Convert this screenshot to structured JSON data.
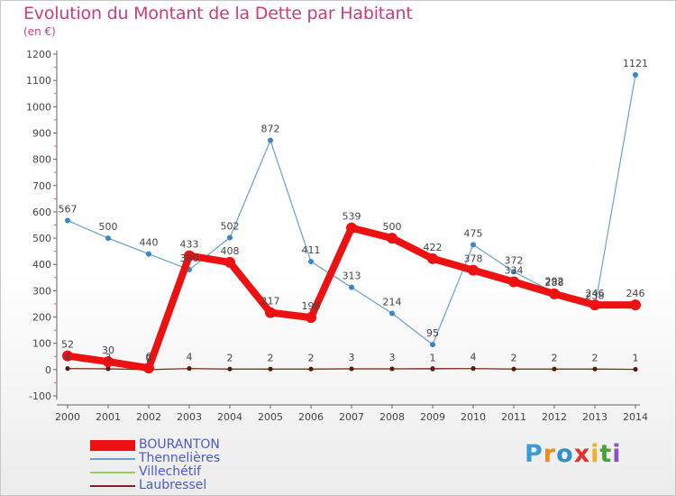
{
  "title": "Evolution du Montant de la Dette par Habitant",
  "subtitle": "(en €)",
  "logo": {
    "text": "Proxiti",
    "letters": [
      {
        "ch": "P",
        "color": "#3b9bd8"
      },
      {
        "ch": "r",
        "color": "#f08a1c"
      },
      {
        "ch": "o",
        "color": "#2f8fd0"
      },
      {
        "ch": "x",
        "color": "#e6302e"
      },
      {
        "ch": "i",
        "color": "#f0b31c"
      },
      {
        "ch": "t",
        "color": "#4aa33a"
      },
      {
        "ch": "i",
        "color": "#8a52c2"
      }
    ]
  },
  "chart_data": {
    "type": "line",
    "x": [
      2000,
      2001,
      2002,
      2003,
      2004,
      2005,
      2006,
      2007,
      2008,
      2009,
      2010,
      2011,
      2012,
      2013,
      2014
    ],
    "ylim": [
      -100,
      1200
    ],
    "yticks": [
      -100,
      0,
      100,
      200,
      300,
      400,
      500,
      600,
      700,
      800,
      900,
      1000,
      1100,
      1200
    ],
    "grid": false,
    "legend_position": "bottom-left",
    "series": [
      {
        "name": "BOURANTON",
        "color": "#ee1111",
        "values": [
          52,
          30,
          6,
          433,
          408,
          217,
          198,
          539,
          500,
          422,
          378,
          334,
          288,
          246,
          246
        ]
      },
      {
        "name": "Thennelières",
        "color": "#6aa0d0",
        "values": [
          567,
          500,
          440,
          380,
          502,
          872,
          411,
          313,
          214,
          95,
          475,
          372,
          292,
          238,
          1121
        ]
      },
      {
        "name": "Villechétif",
        "color": "#92cf5a",
        "values": [
          4,
          3,
          0,
          4,
          2,
          2,
          2,
          3,
          3,
          1,
          4,
          2,
          2,
          2,
          1
        ]
      },
      {
        "name": "Laubressel",
        "color": "#7a2424",
        "values": [
          4,
          3,
          0,
          4,
          2,
          2,
          2,
          3,
          3,
          4,
          4,
          2,
          2,
          2,
          1
        ]
      }
    ],
    "data_labels": [
      {
        "text": "567",
        "series": 1,
        "i": 0
      },
      {
        "text": "500",
        "series": 1,
        "i": 1
      },
      {
        "text": "440",
        "series": 1,
        "i": 2
      },
      {
        "text": "380",
        "series": 1,
        "i": 3
      },
      {
        "text": "502",
        "series": 1,
        "i": 4
      },
      {
        "text": "872",
        "series": 1,
        "i": 5
      },
      {
        "text": "411",
        "series": 1,
        "i": 6
      },
      {
        "text": "313",
        "series": 1,
        "i": 7
      },
      {
        "text": "214",
        "series": 1,
        "i": 8
      },
      {
        "text": "95",
        "series": 1,
        "i": 9
      },
      {
        "text": "475",
        "series": 1,
        "i": 10
      },
      {
        "text": "372",
        "series": 1,
        "i": 11
      },
      {
        "text": "292",
        "series": 1,
        "i": 12
      },
      {
        "text": "238",
        "series": 1,
        "i": 13
      },
      {
        "text": "1121",
        "series": 1,
        "i": 14
      },
      {
        "text": "52",
        "series": 0,
        "i": 0
      },
      {
        "text": "30",
        "series": 0,
        "i": 1
      },
      {
        "text": "6",
        "series": 0,
        "i": 2
      },
      {
        "text": "433",
        "series": 0,
        "i": 3
      },
      {
        "text": "408",
        "series": 0,
        "i": 4
      },
      {
        "text": "217",
        "series": 0,
        "i": 5
      },
      {
        "text": "198",
        "series": 0,
        "i": 6
      },
      {
        "text": "539",
        "series": 0,
        "i": 7
      },
      {
        "text": "500",
        "series": 0,
        "i": 8
      },
      {
        "text": "422",
        "series": 0,
        "i": 9
      },
      {
        "text": "378",
        "series": 0,
        "i": 10
      },
      {
        "text": "334",
        "series": 0,
        "i": 11
      },
      {
        "text": "288",
        "series": 0,
        "i": 12
      },
      {
        "text": "246",
        "series": 0,
        "i": 13
      },
      {
        "text": "246",
        "series": 0,
        "i": 14
      },
      {
        "text": "4",
        "series": 2,
        "i": 0
      },
      {
        "text": "3",
        "series": 2,
        "i": 1
      },
      {
        "text": "0",
        "series": 2,
        "i": 2
      },
      {
        "text": "4",
        "series": 2,
        "i": 3
      },
      {
        "text": "2",
        "series": 2,
        "i": 4
      },
      {
        "text": "2",
        "series": 2,
        "i": 5
      },
      {
        "text": "2",
        "series": 2,
        "i": 6
      },
      {
        "text": "3",
        "series": 2,
        "i": 7
      },
      {
        "text": "3",
        "series": 2,
        "i": 8
      },
      {
        "text": "1",
        "series": 2,
        "i": 9
      },
      {
        "text": "4",
        "series": 2,
        "i": 10
      },
      {
        "text": "2",
        "series": 2,
        "i": 11
      },
      {
        "text": "2",
        "series": 2,
        "i": 12
      },
      {
        "text": "2",
        "series": 2,
        "i": 13
      },
      {
        "text": "1",
        "series": 2,
        "i": 14
      }
    ]
  }
}
